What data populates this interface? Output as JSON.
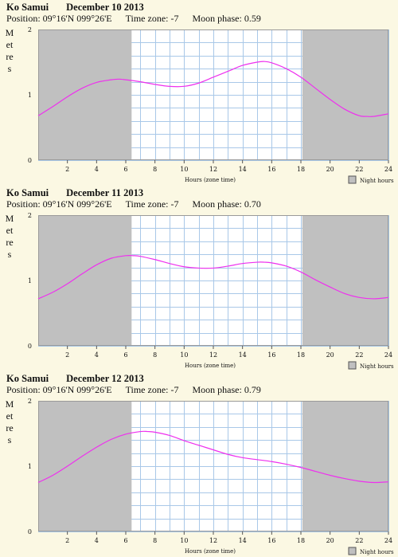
{
  "legend_label": "Night hours",
  "colors": {
    "background": "#fbf8e3",
    "night": "#c0c0c0",
    "day": "#ffffff",
    "grid": "#a9c8e8",
    "curve": "#ee30ee"
  },
  "panels": [
    {
      "location": "Ko Samui",
      "date": "December 10 2013",
      "position_label": "Position: 09°16'N 099°26'E",
      "timezone_label": "Time zone: -7",
      "moon_label": "Moon phase: 0.59",
      "ylabel": "Metres",
      "chart_data": {
        "type": "line",
        "xlabel": "Hours (zone time)",
        "ylabel": "Metres",
        "xlim": [
          0,
          24
        ],
        "ylim": [
          0,
          2
        ],
        "x_ticks": [
          "2",
          "4",
          "6",
          "8",
          "10",
          "12",
          "14",
          "16",
          "18",
          "20",
          "22",
          "24"
        ],
        "y_ticks": [
          "0",
          "1",
          "2"
        ],
        "night_hours": [
          [
            0,
            6.4
          ],
          [
            18.1,
            24
          ]
        ],
        "grid": true,
        "x": [
          0,
          1,
          2,
          3,
          4,
          5,
          5.5,
          6,
          7,
          8,
          9,
          10,
          11,
          12,
          13,
          14,
          15,
          15.5,
          16,
          17,
          18,
          19,
          20,
          21,
          22,
          22.5,
          23,
          24
        ],
        "values": [
          0.68,
          0.82,
          0.97,
          1.1,
          1.19,
          1.23,
          1.24,
          1.23,
          1.2,
          1.16,
          1.13,
          1.13,
          1.18,
          1.27,
          1.36,
          1.45,
          1.5,
          1.51,
          1.49,
          1.4,
          1.27,
          1.1,
          0.93,
          0.78,
          0.68,
          0.67,
          0.67,
          0.71
        ]
      }
    },
    {
      "location": "Ko Samui",
      "date": "December 11 2013",
      "position_label": "Position: 09°16'N 099°26'E",
      "timezone_label": "Time zone: -7",
      "moon_label": "Moon phase: 0.70",
      "ylabel": "Metres",
      "chart_data": {
        "type": "line",
        "xlabel": "Hours (zone time)",
        "ylabel": "Metres",
        "xlim": [
          0,
          24
        ],
        "ylim": [
          0,
          2
        ],
        "x_ticks": [
          "2",
          "4",
          "6",
          "8",
          "10",
          "12",
          "14",
          "16",
          "18",
          "20",
          "22",
          "24"
        ],
        "y_ticks": [
          "0",
          "1",
          "2"
        ],
        "night_hours": [
          [
            0,
            6.4
          ],
          [
            18.1,
            24
          ]
        ],
        "grid": true,
        "x": [
          0,
          1,
          2,
          3,
          4,
          5,
          6,
          6.5,
          7,
          8,
          9,
          10,
          11,
          12,
          13,
          14,
          15,
          15.5,
          16,
          17,
          18,
          19,
          20,
          21,
          22,
          23,
          24
        ],
        "values": [
          0.72,
          0.82,
          0.95,
          1.1,
          1.24,
          1.34,
          1.38,
          1.38,
          1.37,
          1.32,
          1.26,
          1.21,
          1.19,
          1.19,
          1.22,
          1.26,
          1.28,
          1.28,
          1.27,
          1.22,
          1.13,
          1.01,
          0.9,
          0.8,
          0.74,
          0.72,
          0.74
        ]
      }
    },
    {
      "location": "Ko Samui",
      "date": "December 12 2013",
      "position_label": "Position: 09°16'N 099°26'E",
      "timezone_label": "Time zone: -7",
      "moon_label": "Moon phase: 0.79",
      "ylabel": "Metres",
      "chart_data": {
        "type": "line",
        "xlabel": "Hours (zone time)",
        "ylabel": "Metres",
        "xlim": [
          0,
          24
        ],
        "ylim": [
          0,
          2
        ],
        "x_ticks": [
          "2",
          "4",
          "6",
          "8",
          "10",
          "12",
          "14",
          "16",
          "18",
          "20",
          "22",
          "24"
        ],
        "y_ticks": [
          "0",
          "1",
          "2"
        ],
        "night_hours": [
          [
            0,
            6.4
          ],
          [
            18.1,
            24
          ]
        ],
        "grid": true,
        "x": [
          0,
          1,
          2,
          3,
          4,
          5,
          6,
          7,
          7.5,
          8,
          9,
          10,
          11,
          12,
          13,
          14,
          15,
          16,
          17,
          18,
          19,
          20,
          21,
          22,
          23,
          24
        ],
        "values": [
          0.75,
          0.86,
          1.0,
          1.15,
          1.29,
          1.41,
          1.49,
          1.53,
          1.53,
          1.52,
          1.47,
          1.39,
          1.32,
          1.25,
          1.18,
          1.13,
          1.1,
          1.07,
          1.03,
          0.98,
          0.92,
          0.86,
          0.81,
          0.77,
          0.75,
          0.76
        ]
      }
    }
  ]
}
